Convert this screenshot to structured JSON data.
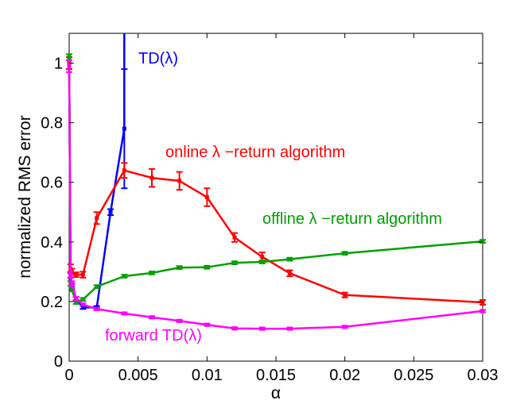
{
  "chart_data": {
    "type": "line",
    "title": "",
    "xlabel": "α",
    "ylabel": "normalized RMS error",
    "xlim": [
      0,
      0.03
    ],
    "ylim": [
      0,
      1.1
    ],
    "x_ticks": [
      0,
      0.005,
      0.01,
      0.015,
      0.02,
      0.025,
      0.03
    ],
    "x_tick_labels": [
      "0",
      "0.005",
      "0.01",
      "0.015",
      "0.02",
      "0.025",
      "0.03"
    ],
    "y_ticks": [
      0,
      0.2,
      0.4,
      0.6,
      0.8,
      1
    ],
    "y_tick_labels": [
      "0",
      "0.2",
      "0.4",
      "0.6",
      "0.8",
      "1"
    ],
    "grid": false,
    "legend": "none",
    "series": [
      {
        "name": "TD(λ)",
        "color": "#0000ff",
        "x": [
          0,
          0.0001,
          0.0002,
          0.0005,
          0.001,
          0.002,
          0.003,
          0.004,
          0.004
        ],
        "y": [
          1.0,
          0.29,
          0.25,
          0.21,
          0.18,
          0.18,
          0.5,
          0.78,
          1.2
        ],
        "err": [
          0.02,
          0.01,
          0.01,
          0.005,
          0.005,
          0.005,
          0.01,
          0.2,
          0
        ]
      },
      {
        "name": "online λ −return algorithm",
        "color": "#ff0000",
        "x": [
          0,
          0.0001,
          0.0002,
          0.0005,
          0.001,
          0.002,
          0.004,
          0.006,
          0.008,
          0.01,
          0.012,
          0.014,
          0.016,
          0.02,
          0.03
        ],
        "y": [
          1.0,
          0.31,
          0.3,
          0.29,
          0.29,
          0.48,
          0.64,
          0.615,
          0.605,
          0.55,
          0.415,
          0.35,
          0.295,
          0.222,
          0.197
        ],
        "err": [
          0.02,
          0.015,
          0.01,
          0.008,
          0.01,
          0.02,
          0.025,
          0.03,
          0.03,
          0.03,
          0.015,
          0.015,
          0.01,
          0.008,
          0.008
        ]
      },
      {
        "name": "offline λ −return algorithm",
        "color": "#00a000",
        "x": [
          0,
          0.0001,
          0.0002,
          0.0005,
          0.001,
          0.002,
          0.004,
          0.006,
          0.008,
          0.01,
          0.012,
          0.014,
          0.016,
          0.02,
          0.03
        ],
        "y": [
          1.02,
          0.26,
          0.24,
          0.197,
          0.207,
          0.25,
          0.285,
          0.296,
          0.314,
          0.315,
          0.33,
          0.333,
          0.342,
          0.362,
          0.402
        ],
        "err": [
          0.01,
          0.008,
          0.006,
          0.005,
          0.005,
          0.005,
          0.005,
          0.005,
          0.005,
          0.005,
          0.005,
          0.005,
          0.005,
          0.005,
          0.005
        ]
      },
      {
        "name": "forward TD(λ)",
        "color": "#ff00ff",
        "x": [
          0,
          0.0001,
          0.0002,
          0.0005,
          0.001,
          0.002,
          0.004,
          0.006,
          0.008,
          0.01,
          0.012,
          0.014,
          0.016,
          0.02,
          0.03
        ],
        "y": [
          0.99,
          0.29,
          0.26,
          0.21,
          0.19,
          0.175,
          0.16,
          0.147,
          0.135,
          0.122,
          0.11,
          0.109,
          0.109,
          0.115,
          0.168
        ],
        "err": [
          0.02,
          0.01,
          0.008,
          0.005,
          0.004,
          0.004,
          0.004,
          0.004,
          0.004,
          0.004,
          0.004,
          0.004,
          0.004,
          0.004,
          0.004
        ]
      }
    ]
  }
}
